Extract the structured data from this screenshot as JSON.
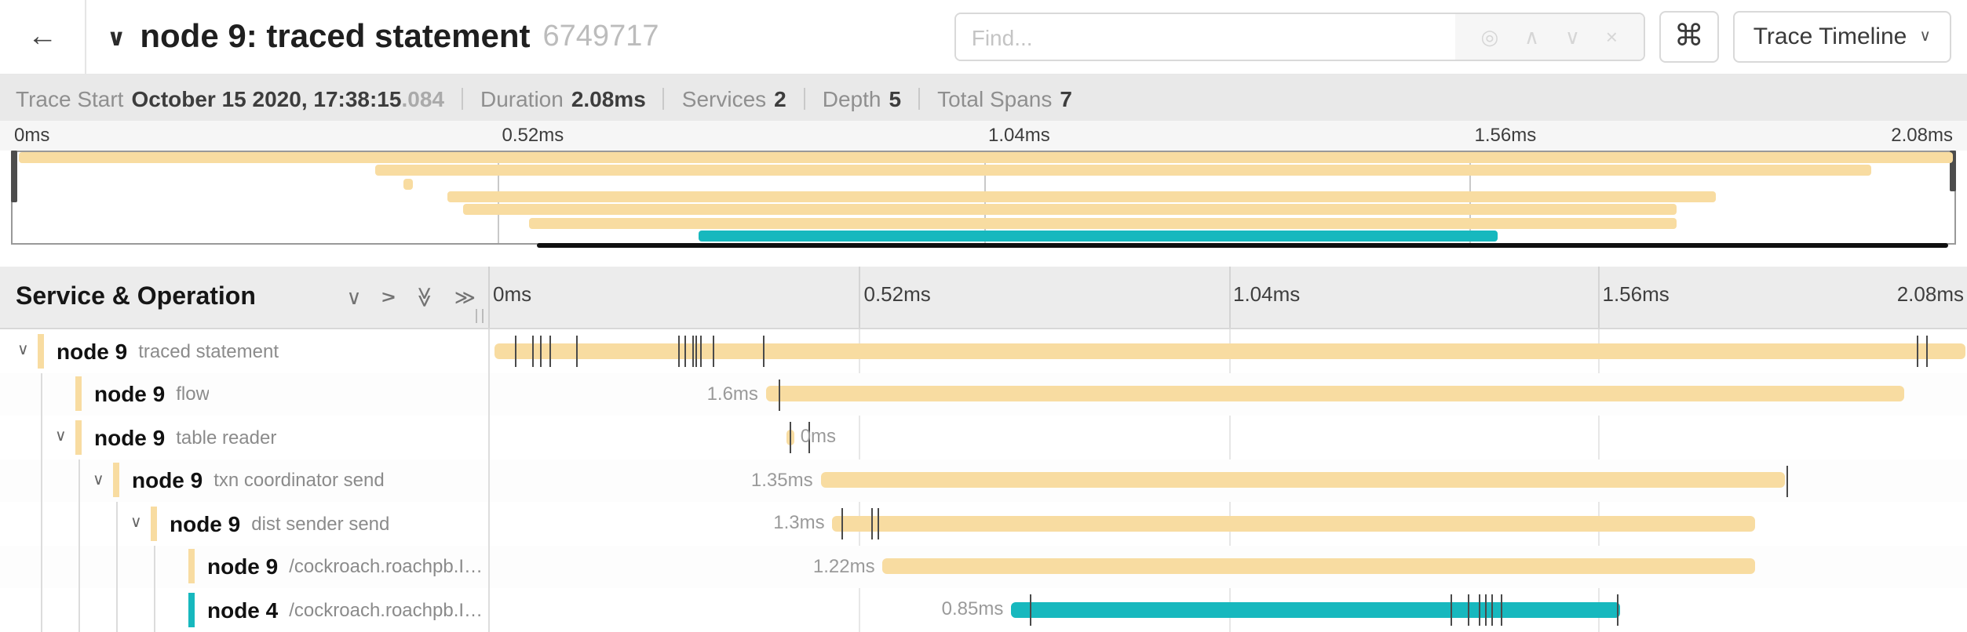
{
  "header": {
    "back_glyph": "←",
    "title_chevron_glyph": "∨",
    "title": "node 9: traced statement",
    "trace_id": "6749717",
    "find_placeholder": "Find...",
    "find_value": "",
    "find_icons": [
      {
        "name": "locate-icon",
        "glyph": "◎"
      },
      {
        "name": "prev-result-icon",
        "glyph": "∧"
      },
      {
        "name": "next-result-icon",
        "glyph": "∨"
      },
      {
        "name": "clear-search-icon",
        "glyph": "×"
      }
    ],
    "cmd_glyph": "⌘",
    "view_select": "Trace Timeline",
    "view_select_chevron": "∨"
  },
  "info_bar": {
    "items": [
      {
        "label": "Trace Start",
        "value": "October 15 2020, 17:38:15",
        "suffix": ".084"
      },
      {
        "label": "Duration",
        "value": "2.08ms",
        "suffix": ""
      },
      {
        "label": "Services",
        "value": "2",
        "suffix": ""
      },
      {
        "label": "Depth",
        "value": "5",
        "suffix": ""
      },
      {
        "label": "Total Spans",
        "value": "7",
        "suffix": ""
      }
    ]
  },
  "timeline": {
    "ruler_ticks": [
      "0ms",
      "0.52ms",
      "1.04ms",
      "1.56ms",
      "2.08ms"
    ],
    "gridline_positions": [
      25,
      50,
      75
    ],
    "total_duration": "2.08ms"
  },
  "minimap": {
    "scrollbar": {
      "start_pct": 27,
      "end_pct": 99.6
    }
  },
  "section_header": {
    "title": "Service & Operation",
    "icons": [
      {
        "name": "collapse-one-icon",
        "glyph": "∨",
        "rotate": 0
      },
      {
        "name": "expand-one-icon",
        "glyph": "∨",
        "rotate": -90
      },
      {
        "name": "collapse-all-icon",
        "glyph": "≫",
        "rotate": 90
      },
      {
        "name": "expand-all-icon",
        "glyph": "≫",
        "rotate": 0
      }
    ]
  },
  "colors": {
    "tan": "#F8DCA1",
    "teal": "#17B8BE",
    "tick": "#4a4a4a"
  },
  "rows": [
    {
      "service": "node 9",
      "operation": "traced statement",
      "depth": 0,
      "expander": "∨",
      "color": "#F8DCA1",
      "bar": {
        "start": 0.3,
        "end": 99.9
      },
      "duration_label": "",
      "label_pos": "none",
      "ticks": [
        1.7,
        2.9,
        3.4,
        4.0,
        5.8,
        12.8,
        13.2,
        13.7,
        13.9,
        14.2,
        15.1,
        18.5,
        96.6,
        97.2
      ]
    },
    {
      "service": "node 9",
      "operation": "flow",
      "depth": 1,
      "expander": "",
      "color": "#F8DCA1",
      "bar": {
        "start": 18.7,
        "end": 95.7
      },
      "duration_label": "1.6ms",
      "label_pos": "left",
      "ticks": [
        19.6
      ]
    },
    {
      "service": "node 9",
      "operation": "table reader",
      "depth": 1,
      "expander": "∨",
      "color": "#F8DCA1",
      "bar": {
        "start": 20.1,
        "end": 20.6
      },
      "duration_label": "0ms",
      "label_pos": "right",
      "ticks": [
        20.3,
        21.6
      ]
    },
    {
      "service": "node 9",
      "operation": "txn coordinator send",
      "depth": 2,
      "expander": "∨",
      "color": "#F8DCA1",
      "bar": {
        "start": 22.4,
        "end": 87.7
      },
      "duration_label": "1.35ms",
      "label_pos": "left",
      "ticks": [
        87.8
      ]
    },
    {
      "service": "node 9",
      "operation": "dist sender send",
      "depth": 3,
      "expander": "∨",
      "color": "#F8DCA1",
      "bar": {
        "start": 23.2,
        "end": 85.7
      },
      "duration_label": "1.3ms",
      "label_pos": "left",
      "ticks": [
        23.8,
        25.8,
        26.3
      ]
    },
    {
      "service": "node 9",
      "operation": "/cockroach.roachpb.I…",
      "depth": 4,
      "expander": "",
      "color": "#F8DCA1",
      "bar": {
        "start": 26.6,
        "end": 85.7
      },
      "duration_label": "1.22ms",
      "label_pos": "left",
      "ticks": []
    },
    {
      "service": "node 4",
      "operation": "/cockroach.roachpb.I…",
      "depth": 4,
      "expander": "",
      "color": "#17B8BE",
      "bar": {
        "start": 35.3,
        "end": 76.5
      },
      "duration_label": "0.85ms",
      "label_pos": "left",
      "ticks": [
        36.6,
        65.0,
        66.2,
        67.0,
        67.4,
        67.8,
        68.4,
        76.3
      ]
    }
  ]
}
